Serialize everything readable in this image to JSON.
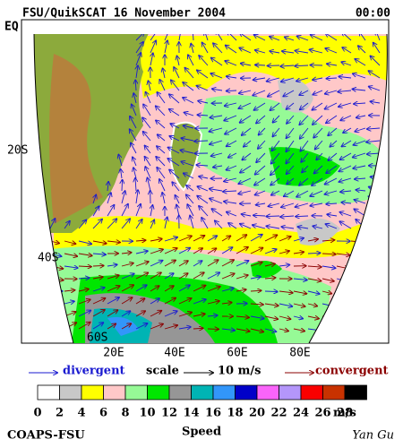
{
  "header": {
    "title": "FSU/QuikSCAT 16 November 2004",
    "time": "00:00"
  },
  "map": {
    "lat_labels": [
      "EQ",
      "20S",
      "40S",
      "60S"
    ],
    "lon_labels": [
      "20E",
      "40E",
      "60E",
      "80E"
    ]
  },
  "legend": {
    "divergent": "divergent",
    "scale": "scale",
    "scale_value": "10 m/s",
    "convergent": "convergent"
  },
  "colorbar": {
    "colors": [
      "#ffffff",
      "#c8c8c8",
      "#ffff00",
      "#ffc8c8",
      "#96fa96",
      "#00e600",
      "#969696",
      "#00b4b4",
      "#3296fa",
      "#0000c8",
      "#fa64fa",
      "#b496fa",
      "#fa0000",
      "#c83200",
      "#000000"
    ],
    "ticks": [
      0,
      2,
      4,
      6,
      8,
      10,
      12,
      14,
      16,
      18,
      20,
      22,
      24,
      26,
      28
    ],
    "unit": "m/s",
    "title": "Speed"
  },
  "footer": {
    "left": "COAPS-FSU",
    "right": "Yan Gu"
  }
}
